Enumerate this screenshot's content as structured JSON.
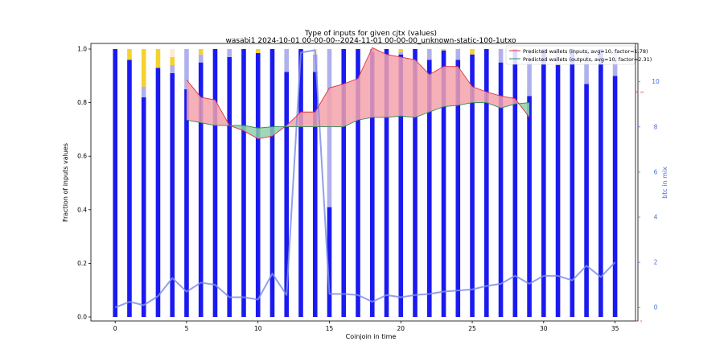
{
  "chart_data": {
    "type": "bar",
    "title": "Type of inputs for given cjtx (values)",
    "subtitle": "wasabi1 2024-10-01 00-00-00--2024-11-01 00-00-00_unknown-static-100-1utxo",
    "xlabel": "Coinjoin in time",
    "ylabel": "Fraction of inputs values",
    "ylabel_right": "btc in mix",
    "x_ticks": [
      0,
      5,
      10,
      15,
      20,
      25,
      30,
      35
    ],
    "y_ticks": [
      "0.0",
      "0.2",
      "0.4",
      "0.6",
      "0.8",
      "1.0"
    ],
    "y2_ticks": [
      "0",
      "2",
      "4",
      "6",
      "8",
      "10"
    ],
    "ylim": [
      0,
      1
    ],
    "y2lim": [
      -0.6,
      11.7
    ],
    "xlim": [
      -1.7,
      36.6
    ],
    "grid": false,
    "legend_position": "top-right",
    "colors": {
      "blue_bar": "#1a1af0",
      "light_blue_bar": "#b0b0ee",
      "yellow_bar": "#f5d22e",
      "peach_bar": "#fde9cf",
      "mix_line": "#7f8fe8",
      "inputs_line": "#e03040",
      "inputs_fill": "#f5a3ac",
      "outputs_line": "#2e8b57",
      "outputs_fill": "#8fd1aa"
    },
    "stacks": [
      {
        "x": 0,
        "blue": 1.0,
        "light": 0.0,
        "yellow": 0.0,
        "peach": 0.0
      },
      {
        "x": 1,
        "blue": 0.96,
        "light": 0.0,
        "yellow": 0.04,
        "peach": 0.0
      },
      {
        "x": 2,
        "blue": 0.82,
        "light": 0.04,
        "yellow": 0.14,
        "peach": 0.0
      },
      {
        "x": 3,
        "blue": 0.93,
        "light": 0.0,
        "yellow": 0.07,
        "peach": 0.0
      },
      {
        "x": 4,
        "blue": 0.91,
        "light": 0.03,
        "yellow": 0.03,
        "peach": 0.03
      },
      {
        "x": 5,
        "blue": 0.85,
        "light": 0.15,
        "yellow": 0.0,
        "peach": 0.0
      },
      {
        "x": 6,
        "blue": 0.95,
        "light": 0.03,
        "yellow": 0.02,
        "peach": 0.0
      },
      {
        "x": 7,
        "blue": 1.0,
        "light": 0.0,
        "yellow": 0.0,
        "peach": 0.0
      },
      {
        "x": 8,
        "blue": 0.97,
        "light": 0.03,
        "yellow": 0.0,
        "peach": 0.0
      },
      {
        "x": 9,
        "blue": 1.0,
        "light": 0.0,
        "yellow": 0.0,
        "peach": 0.0
      },
      {
        "x": 10,
        "blue": 0.985,
        "light": 0.0,
        "yellow": 0.015,
        "peach": 0.0
      },
      {
        "x": 11,
        "blue": 1.0,
        "light": 0.0,
        "yellow": 0.0,
        "peach": 0.0
      },
      {
        "x": 12,
        "blue": 0.915,
        "light": 0.085,
        "yellow": 0.0,
        "peach": 0.0
      },
      {
        "x": 13,
        "blue": 1.0,
        "light": 0.0,
        "yellow": 0.0,
        "peach": 0.0
      },
      {
        "x": 14,
        "blue": 0.915,
        "light": 0.065,
        "yellow": 0.0,
        "peach": 0.02
      },
      {
        "x": 15,
        "blue": 0.41,
        "light": 0.59,
        "yellow": 0.0,
        "peach": 0.0
      },
      {
        "x": 16,
        "blue": 1.0,
        "light": 0.0,
        "yellow": 0.0,
        "peach": 0.0
      },
      {
        "x": 17,
        "blue": 1.0,
        "light": 0.0,
        "yellow": 0.0,
        "peach": 0.0
      },
      {
        "x": 18,
        "blue": 0.99,
        "light": 0.01,
        "yellow": 0.0,
        "peach": 0.0
      },
      {
        "x": 19,
        "blue": 1.0,
        "light": 0.0,
        "yellow": 0.0,
        "peach": 0.0
      },
      {
        "x": 20,
        "blue": 0.98,
        "light": 0.01,
        "yellow": 0.01,
        "peach": 0.0
      },
      {
        "x": 21,
        "blue": 1.0,
        "light": 0.0,
        "yellow": 0.0,
        "peach": 0.0
      },
      {
        "x": 22,
        "blue": 0.96,
        "light": 0.04,
        "yellow": 0.0,
        "peach": 0.0
      },
      {
        "x": 23,
        "blue": 0.995,
        "light": 0.0,
        "yellow": 0.005,
        "peach": 0.0
      },
      {
        "x": 24,
        "blue": 0.96,
        "light": 0.04,
        "yellow": 0.0,
        "peach": 0.0
      },
      {
        "x": 25,
        "blue": 0.98,
        "light": 0.0,
        "yellow": 0.02,
        "peach": 0.0
      },
      {
        "x": 26,
        "blue": 1.0,
        "light": 0.0,
        "yellow": 0.0,
        "peach": 0.0
      },
      {
        "x": 27,
        "blue": 0.95,
        "light": 0.05,
        "yellow": 0.0,
        "peach": 0.0
      },
      {
        "x": 28,
        "blue": 1.0,
        "light": 0.0,
        "yellow": 0.0,
        "peach": 0.0
      },
      {
        "x": 29,
        "blue": 0.825,
        "light": 0.175,
        "yellow": 0.0,
        "peach": 0.0
      },
      {
        "x": 30,
        "blue": 1.0,
        "light": 0.0,
        "yellow": 0.0,
        "peach": 0.0
      },
      {
        "x": 31,
        "blue": 0.94,
        "light": 0.06,
        "yellow": 0.0,
        "peach": 0.0
      },
      {
        "x": 32,
        "blue": 1.0,
        "light": 0.0,
        "yellow": 0.0,
        "peach": 0.0
      },
      {
        "x": 33,
        "blue": 0.87,
        "light": 0.13,
        "yellow": 0.0,
        "peach": 0.0
      },
      {
        "x": 34,
        "blue": 1.0,
        "light": 0.0,
        "yellow": 0.0,
        "peach": 0.0
      },
      {
        "x": 35,
        "blue": 0.9,
        "light": 0.1,
        "yellow": 0.0,
        "peach": 0.0
      }
    ],
    "btc_in_mix": {
      "x": [
        0,
        1,
        2,
        3,
        4,
        5,
        6,
        7,
        8,
        9,
        10,
        11,
        12,
        13,
        14,
        15,
        16,
        17,
        18,
        19,
        20,
        21,
        22,
        23,
        24,
        25,
        26,
        27,
        28,
        29,
        30,
        31,
        32,
        33,
        34,
        35
      ],
      "values": [
        0.0,
        0.25,
        0.1,
        0.5,
        1.3,
        0.7,
        1.1,
        1.0,
        0.45,
        0.45,
        0.35,
        1.5,
        0.55,
        11.3,
        11.4,
        0.6,
        0.6,
        0.55,
        0.25,
        0.55,
        0.45,
        0.55,
        0.6,
        0.7,
        0.75,
        0.8,
        0.95,
        1.05,
        1.4,
        1.05,
        1.4,
        1.4,
        1.2,
        1.85,
        1.35,
        2.0
      ]
    },
    "series": [
      {
        "name": "Predicted wallets (inputs, avg=10, factor=1.78)",
        "x": [
          5,
          6,
          7,
          8,
          9,
          10,
          11,
          12,
          13,
          14,
          15,
          16,
          17,
          18,
          19,
          20,
          21,
          22,
          23,
          24,
          25,
          26,
          27,
          28,
          29
        ],
        "values": [
          0.885,
          0.82,
          0.81,
          0.715,
          0.695,
          0.665,
          0.675,
          0.715,
          0.765,
          0.765,
          0.855,
          0.87,
          0.89,
          1.005,
          0.98,
          0.97,
          0.96,
          0.905,
          0.935,
          0.935,
          0.86,
          0.84,
          0.825,
          0.815,
          0.745
        ]
      },
      {
        "name": "Predicted wallets (outputs, avg=10, factor=2.31)",
        "x": [
          5,
          6,
          7,
          8,
          9,
          10,
          11,
          12,
          13,
          14,
          15,
          16,
          17,
          18,
          19,
          20,
          21,
          22,
          23,
          24,
          25,
          26,
          27,
          28,
          29
        ],
        "values": [
          0.735,
          0.725,
          0.715,
          0.715,
          0.715,
          0.705,
          0.71,
          0.71,
          0.71,
          0.71,
          0.71,
          0.71,
          0.735,
          0.745,
          0.745,
          0.75,
          0.745,
          0.765,
          0.785,
          0.79,
          0.8,
          0.8,
          0.78,
          0.795,
          0.8
        ]
      }
    ],
    "inner_axis": {
      "ticks": [
        "20",
        "0"
      ],
      "color": "#e03040"
    }
  }
}
